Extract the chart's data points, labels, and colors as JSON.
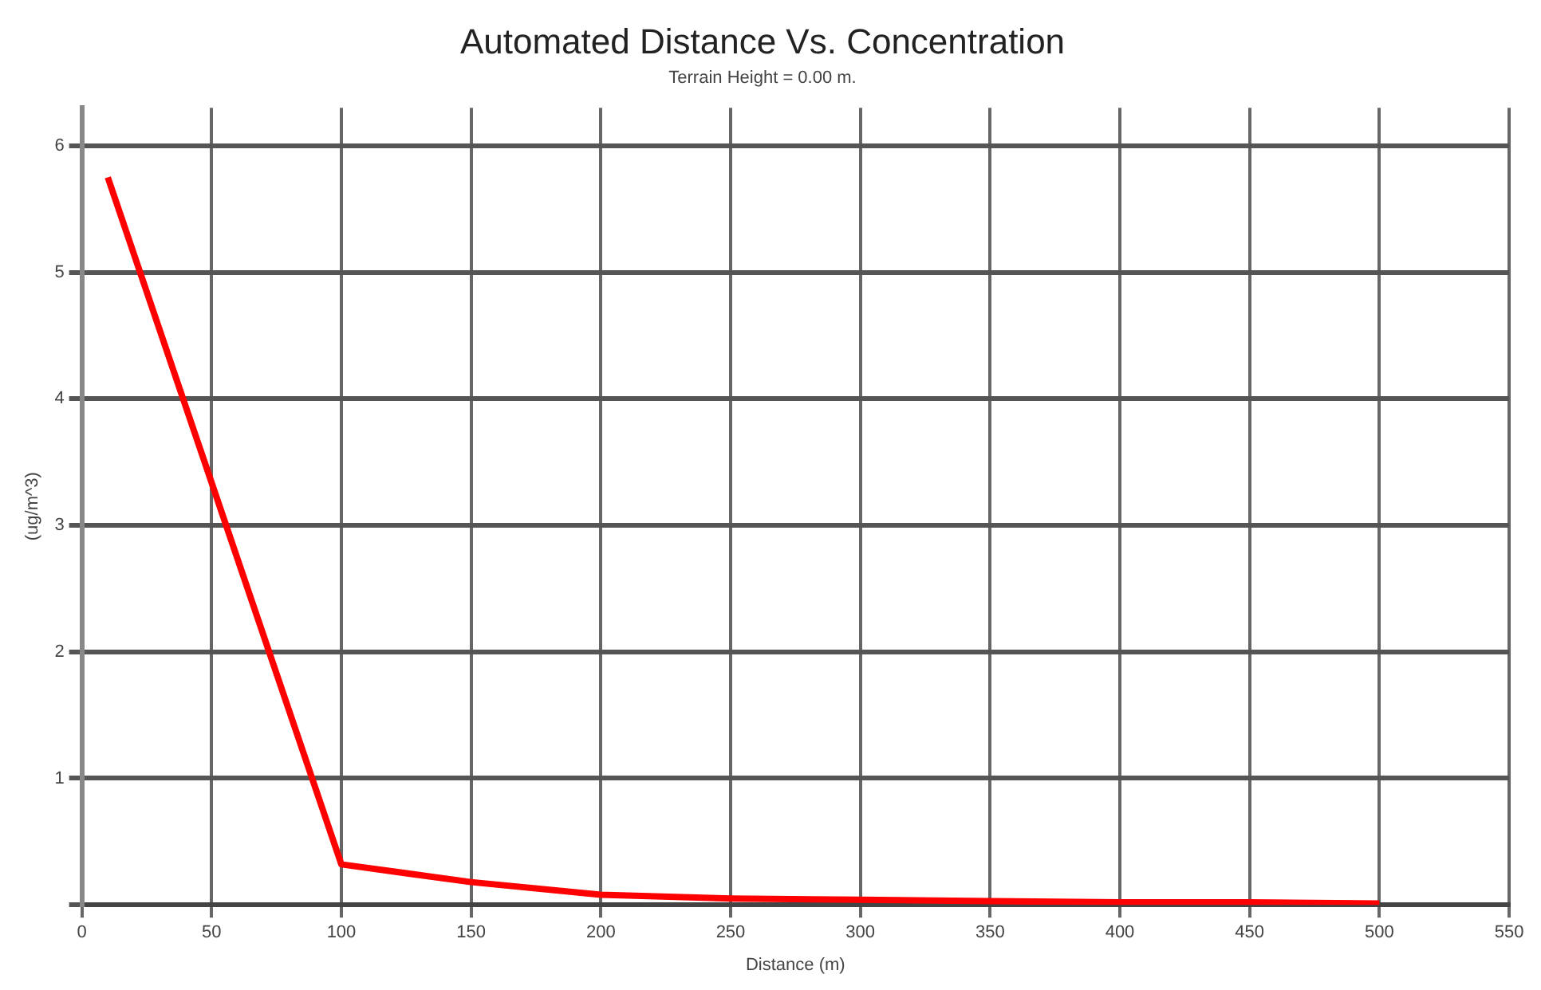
{
  "chart_data": {
    "type": "line",
    "title": "Automated Distance Vs. Concentration",
    "subtitle": "Terrain Height = 0.00 m.",
    "xlabel": "Distance (m)",
    "ylabel": "(ug/m^3)",
    "x": [
      10,
      100,
      150,
      200,
      250,
      300,
      350,
      400,
      450,
      500
    ],
    "series": [
      {
        "color": "#ff0000",
        "values": [
          5.75,
          0.32,
          0.18,
          0.08,
          0.05,
          0.04,
          0.03,
          0.02,
          0.02,
          0.01
        ]
      }
    ],
    "xlim": [
      0,
      550
    ],
    "xticks": [
      0,
      50,
      100,
      150,
      200,
      250,
      300,
      350,
      400,
      450,
      500,
      550
    ],
    "ylim": [
      0,
      6.3
    ],
    "yticks": [
      {
        "value": 0,
        "label": null
      },
      1,
      2,
      3,
      4,
      5,
      6
    ],
    "grid": true,
    "legend": false,
    "marker": "none",
    "line_style": "solid"
  }
}
